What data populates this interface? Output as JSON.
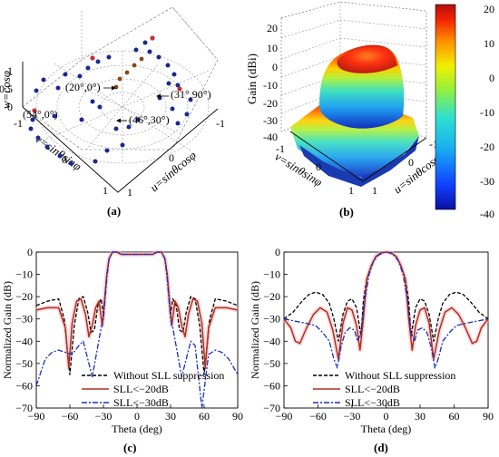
{
  "panel_labels": {
    "a": "(a)",
    "b": "(b)",
    "c": "(c)",
    "d": "(d)"
  },
  "panel_a": {
    "axis_labels": {
      "w": "w=cosφ",
      "v": "v=sinθsinφ",
      "u": "u=sinθcosφ"
    },
    "w_ticks": [
      "1",
      "0.5",
      "0"
    ],
    "v_ticks": [
      "-1",
      "0",
      "1"
    ],
    "u_ticks": [
      "-1",
      "0",
      "1"
    ],
    "annotations": [
      "(20°,0°)",
      "(31°,90°)",
      "(54°,0°)",
      "(46°,30°)"
    ],
    "colors": {
      "blue_dot": "#1a2a8c",
      "red_dot": "#c0303a",
      "brown_dot": "#8b4513"
    }
  },
  "panel_b": {
    "zlabel": "Gain (dBi)",
    "z_ticks": [
      "20",
      "10",
      "0",
      "-10",
      "-20",
      "-30",
      "-40"
    ],
    "v_label": "v=sinθsinφ",
    "u_label": "u=sinθcosφ",
    "v_ticks": [
      "-1",
      "0",
      "1"
    ],
    "u_ticks": [
      "-1",
      "0",
      "1"
    ],
    "colorbar": {
      "ticks": [
        "20",
        "10",
        "0",
        "-10",
        "-20",
        "-30",
        "-40"
      ],
      "min": -40,
      "max": 20
    }
  },
  "legend": {
    "none": "Without SLL suppression",
    "s20": "SLL<−20dB",
    "s30": "SLL<−30dB"
  },
  "chart_data": [
    {
      "type": "line",
      "xlabel": "Theta (deg)",
      "ylabel": "Normalized Gain (dB)",
      "xlim": [
        -90,
        90
      ],
      "ylim": [
        -70,
        0
      ],
      "x_ticks": [
        -90,
        -60,
        -30,
        0,
        30,
        60,
        90
      ],
      "y_ticks": [
        0,
        -10,
        -20,
        -30,
        -40,
        -50,
        -60,
        -70
      ],
      "series": [
        {
          "key": "none",
          "color": "#000000",
          "dash": "4,2",
          "x": [
            -90,
            -80,
            -70,
            -65,
            -60,
            -56,
            -52,
            -48,
            -44,
            -41,
            -38,
            -35,
            -32,
            -30,
            -27,
            -25,
            -22,
            -18,
            -14,
            -10,
            -5,
            0,
            5,
            10,
            14,
            18,
            22,
            25,
            27,
            30,
            32,
            35,
            38,
            41,
            44,
            48,
            52,
            56,
            60,
            65,
            70,
            80,
            90
          ],
          "y": [
            -24,
            -22,
            -21,
            -30,
            -55,
            -33,
            -21,
            -20,
            -27,
            -36,
            -35,
            -24,
            -21,
            -28,
            -10,
            -3,
            0,
            0,
            -1,
            -1,
            -1,
            -1,
            -1,
            -1,
            -1,
            0,
            0,
            -3,
            -10,
            -28,
            -21,
            -24,
            -35,
            -36,
            -27,
            -20,
            -21,
            -33,
            -55,
            -30,
            -21,
            -22,
            -24
          ]
        },
        {
          "key": "s20",
          "color": "#b03020",
          "dash": "",
          "x": [
            -90,
            -80,
            -70,
            -64,
            -61,
            -58,
            -54,
            -50,
            -46,
            -43,
            -40,
            -37,
            -34,
            -31,
            -27,
            -25,
            -22,
            -18,
            -14,
            -10,
            -5,
            0,
            5,
            10,
            14,
            18,
            22,
            25,
            27,
            31,
            34,
            37,
            40,
            43,
            46,
            50,
            54,
            58,
            61,
            64,
            70,
            80,
            90
          ],
          "y": [
            -26,
            -25,
            -25,
            -34,
            -52,
            -32,
            -22,
            -21,
            -28,
            -38,
            -33,
            -25,
            -22,
            -33,
            -10,
            -3,
            0,
            0,
            -1,
            -1,
            -1,
            -1,
            -1,
            -1,
            -1,
            0,
            0,
            -3,
            -10,
            -33,
            -22,
            -25,
            -33,
            -38,
            -28,
            -21,
            -22,
            -32,
            -52,
            -34,
            -25,
            -25,
            -26
          ]
        },
        {
          "key": "s30",
          "color": "#1830c0",
          "dash": "6,2,2,2",
          "x": [
            -90,
            -82,
            -76,
            -70,
            -64,
            -58,
            -52,
            -48,
            -44,
            -40,
            -36,
            -32,
            -30,
            -27,
            -25,
            -22,
            -18,
            -14,
            -10,
            -5,
            0,
            5,
            10,
            14,
            18,
            22,
            25,
            27,
            30,
            32,
            36,
            40,
            44,
            48,
            52,
            58,
            64,
            70,
            76,
            82,
            90
          ],
          "y": [
            -60,
            -48,
            -45,
            -44,
            -45,
            -46,
            -42,
            -40,
            -48,
            -56,
            -45,
            -34,
            -30,
            -12,
            -3,
            0,
            0,
            -1,
            -1,
            -1,
            -1,
            -1,
            -1,
            -1,
            0,
            0,
            -3,
            -12,
            -30,
            -34,
            -45,
            -56,
            -48,
            -40,
            -42,
            -72,
            -46,
            -44,
            -45,
            -48,
            -55
          ]
        }
      ]
    },
    {
      "type": "line",
      "xlabel": "Theta (deg)",
      "ylabel": "Normalized Gain (dB)",
      "xlim": [
        -90,
        90
      ],
      "ylim": [
        -70,
        0
      ],
      "x_ticks": [
        -90,
        -60,
        -30,
        0,
        30,
        60,
        90
      ],
      "y_ticks": [
        0,
        -10,
        -20,
        -30,
        -40,
        -50,
        -60,
        -70
      ],
      "series": [
        {
          "key": "none",
          "color": "#000000",
          "dash": "4,2",
          "x": [
            -90,
            -82,
            -74,
            -68,
            -62,
            -56,
            -50,
            -46,
            -42,
            -38,
            -34,
            -30,
            -26,
            -22,
            -20,
            -17,
            -13,
            -9,
            -5,
            0,
            5,
            9,
            13,
            17,
            20,
            22,
            26,
            30,
            34,
            38,
            42,
            46,
            50,
            56,
            62,
            68,
            74,
            82,
            90
          ],
          "y": [
            -30,
            -27,
            -22,
            -19,
            -18,
            -19,
            -23,
            -30,
            -40,
            -28,
            -22,
            -21,
            -25,
            -38,
            -22,
            -12,
            -6,
            -2,
            -0.5,
            0,
            -0.5,
            -2,
            -6,
            -12,
            -22,
            -38,
            -25,
            -21,
            -22,
            -28,
            -40,
            -30,
            -23,
            -19,
            -18,
            -19,
            -22,
            -27,
            -30
          ]
        },
        {
          "key": "s20",
          "color": "#b03020",
          "dash": "",
          "x": [
            -90,
            -84,
            -80,
            -76,
            -70,
            -64,
            -58,
            -52,
            -47,
            -42,
            -38,
            -34,
            -30,
            -26,
            -23,
            -20,
            -17,
            -13,
            -9,
            -5,
            0,
            5,
            9,
            13,
            17,
            20,
            23,
            26,
            30,
            34,
            38,
            42,
            47,
            52,
            58,
            64,
            70,
            76,
            80,
            84,
            90
          ],
          "y": [
            -30,
            -34,
            -40,
            -41,
            -34,
            -28,
            -25,
            -27,
            -35,
            -48,
            -32,
            -25,
            -26,
            -33,
            -44,
            -30,
            -12,
            -6,
            -2,
            -0.5,
            0,
            -0.5,
            -2,
            -6,
            -12,
            -30,
            -44,
            -33,
            -26,
            -25,
            -32,
            -48,
            -35,
            -27,
            -25,
            -28,
            -34,
            -41,
            -40,
            -34,
            -30
          ]
        },
        {
          "key": "s30",
          "color": "#1830c0",
          "dash": "6,2,2,2",
          "x": [
            -90,
            -80,
            -70,
            -62,
            -56,
            -50,
            -46,
            -43,
            -40,
            -36,
            -32,
            -28,
            -25,
            -22,
            -19,
            -15,
            -11,
            -7,
            -3,
            0,
            3,
            7,
            11,
            15,
            19,
            22,
            25,
            28,
            32,
            36,
            40,
            43,
            46,
            50,
            56,
            62,
            70,
            80,
            90
          ],
          "y": [
            -30,
            -31,
            -32,
            -33,
            -36,
            -40,
            -48,
            -52,
            -43,
            -36,
            -34,
            -35,
            -40,
            -36,
            -22,
            -10,
            -4,
            -1.5,
            -0.3,
            0,
            -0.3,
            -1.5,
            -4,
            -10,
            -22,
            -36,
            -40,
            -35,
            -34,
            -36,
            -43,
            -52,
            -48,
            -40,
            -36,
            -33,
            -32,
            -31,
            -30
          ]
        }
      ]
    }
  ]
}
